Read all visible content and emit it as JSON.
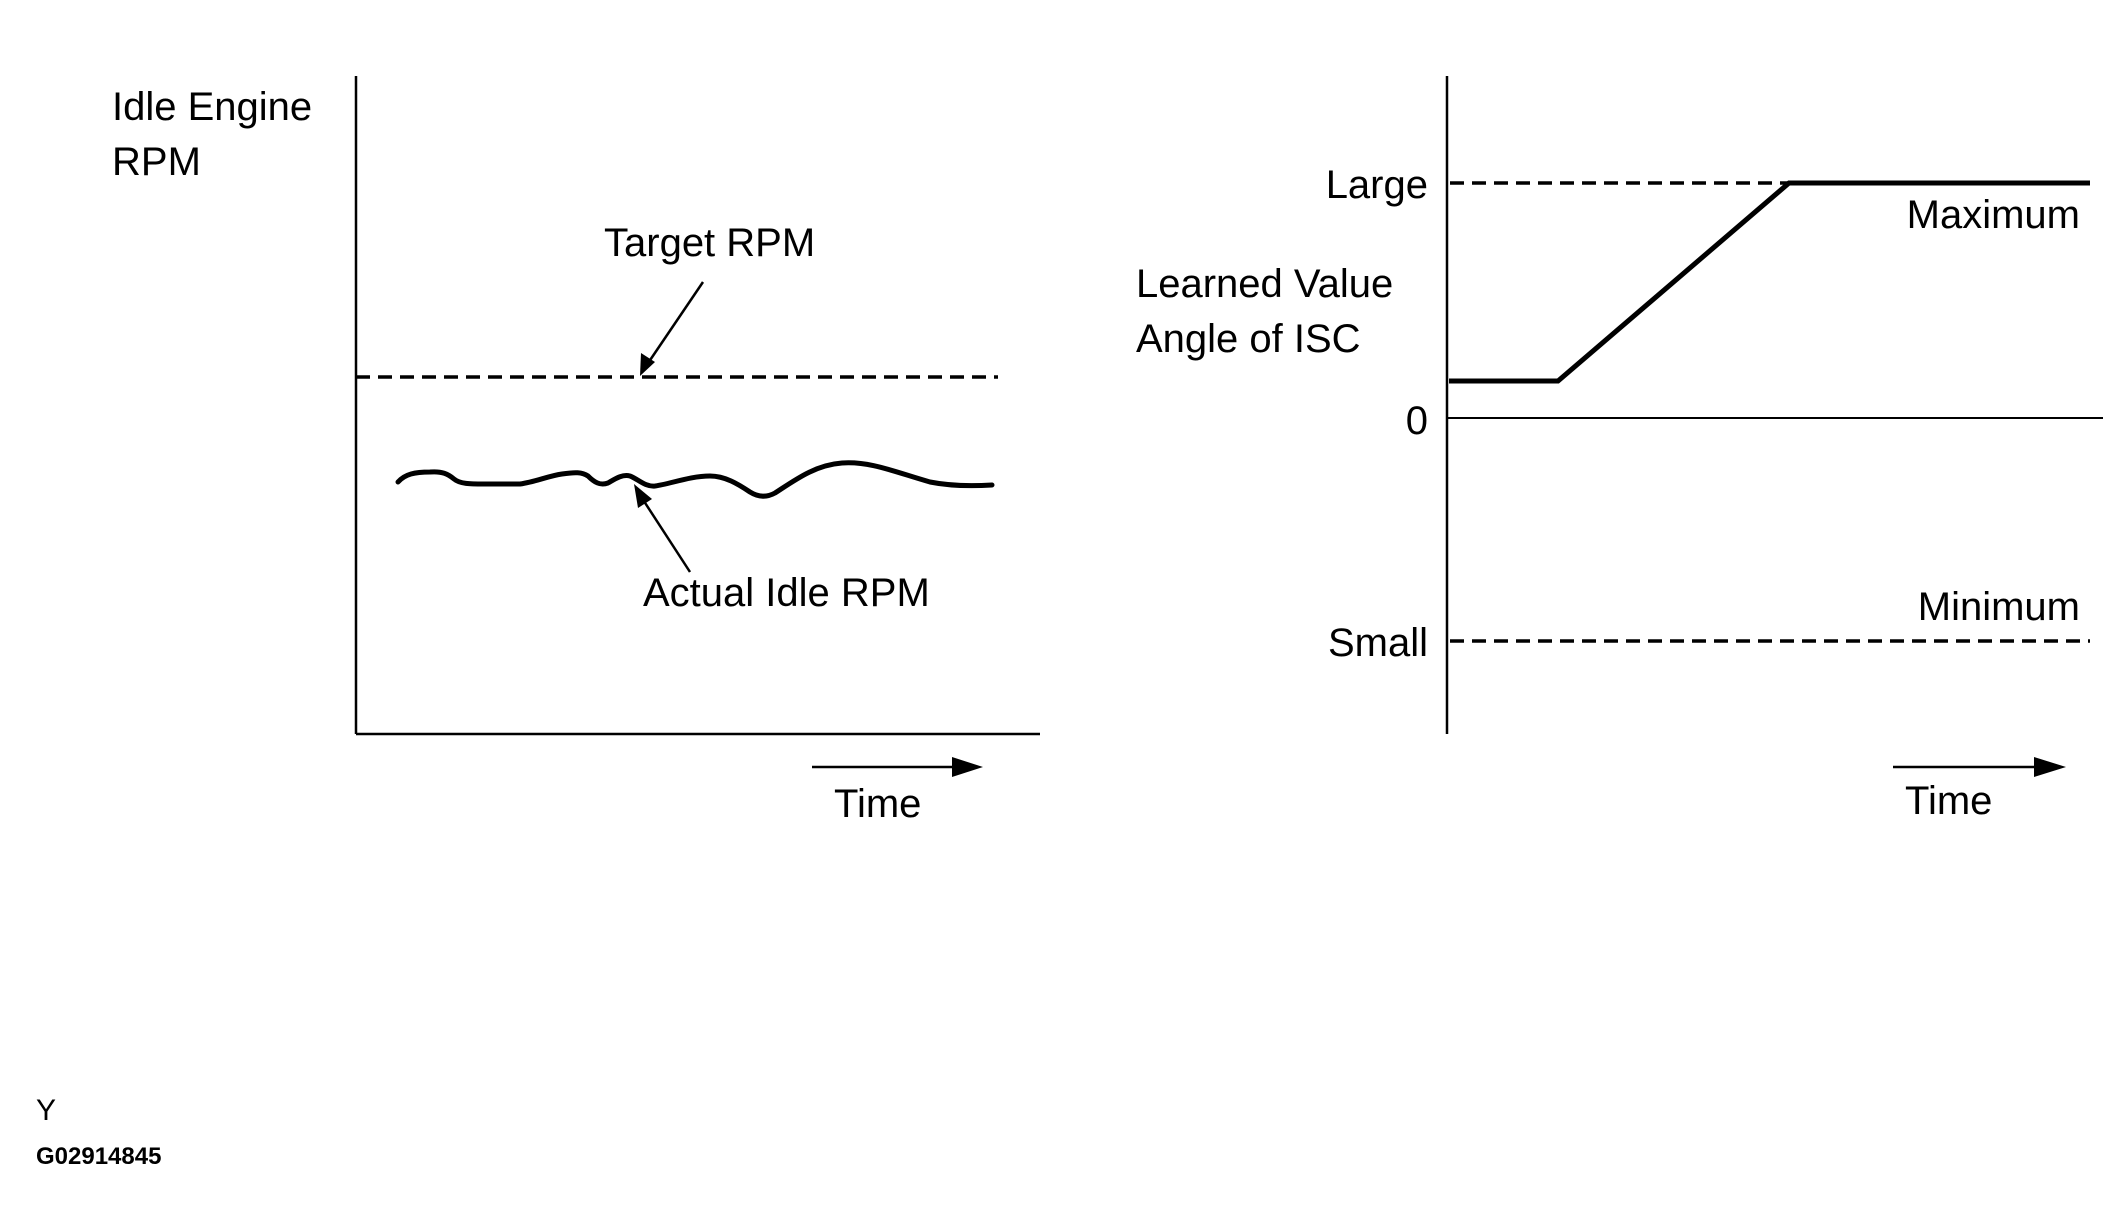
{
  "left_chart": {
    "ylabel_line1": "Idle Engine",
    "ylabel_line2": "RPM",
    "target_label": "Target RPM",
    "actual_label": "Actual Idle RPM",
    "xlabel": "Time"
  },
  "right_chart": {
    "ylabel_line1": "Learned Value",
    "ylabel_line2": "Angle of ISC",
    "tick_large": "Large",
    "tick_zero": "0",
    "tick_small": "Small",
    "max_label": "Maximum",
    "min_label": "Minimum",
    "xlabel": "Time"
  },
  "footer": {
    "mark": "Y",
    "code": "G02914845"
  },
  "colors": {
    "ink": "#000000",
    "background": "#ffffff"
  }
}
